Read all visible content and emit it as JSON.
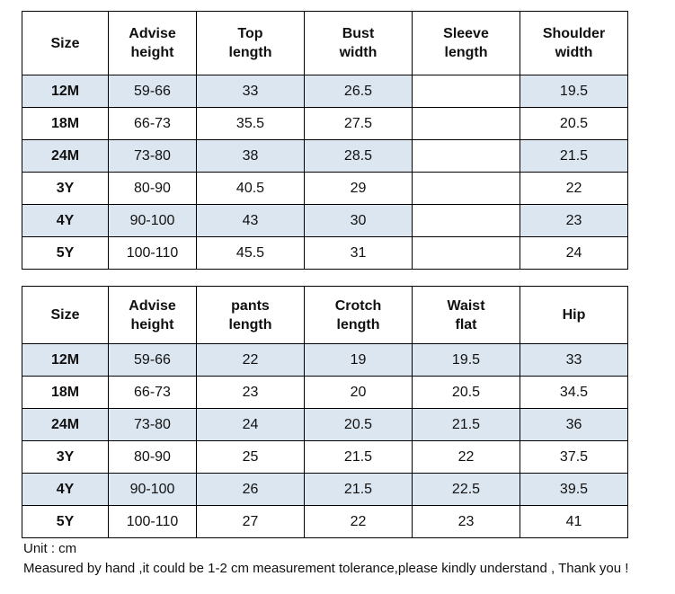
{
  "top_table": {
    "headers": [
      [
        "Size"
      ],
      [
        "Advise",
        "height"
      ],
      [
        "Top",
        "length"
      ],
      [
        "Bust",
        "width"
      ],
      [
        "Sleeve",
        "length"
      ],
      [
        "Shoulder",
        "width"
      ]
    ],
    "rows": [
      [
        "12M",
        "59-66",
        "33",
        "26.5",
        "",
        "19.5"
      ],
      [
        "18M",
        "66-73",
        "35.5",
        "27.5",
        "",
        "20.5"
      ],
      [
        "24M",
        "73-80",
        "38",
        "28.5",
        "",
        "21.5"
      ],
      [
        "3Y",
        "80-90",
        "40.5",
        "29",
        "",
        "22"
      ],
      [
        "4Y",
        "90-100",
        "43",
        "30",
        "",
        "23"
      ],
      [
        "5Y",
        "100-110",
        "45.5",
        "31",
        "",
        "24"
      ]
    ]
  },
  "bottom_table": {
    "headers": [
      [
        "Size"
      ],
      [
        "Advise",
        "height"
      ],
      [
        "pants",
        "length"
      ],
      [
        "Crotch",
        "length"
      ],
      [
        "Waist",
        "flat"
      ],
      [
        "Hip"
      ]
    ],
    "rows": [
      [
        "12M",
        "59-66",
        "22",
        "19",
        "19.5",
        "33"
      ],
      [
        "18M",
        "66-73",
        "23",
        "20",
        "20.5",
        "34.5"
      ],
      [
        "24M",
        "73-80",
        "24",
        "20.5",
        "21.5",
        "36"
      ],
      [
        "3Y",
        "80-90",
        "25",
        "21.5",
        "22",
        "37.5"
      ],
      [
        "4Y",
        "90-100",
        "26",
        "21.5",
        "22.5",
        "39.5"
      ],
      [
        "5Y",
        "100-110",
        "27",
        "22",
        "23",
        "41"
      ]
    ]
  },
  "notes": {
    "unit": "Unit : cm",
    "measure": "Measured by hand ,it could be 1-2 cm measurement tolerance,please kindly understand , Thank you !"
  },
  "colors": {
    "row_shade": "#dce6f1",
    "border": "#000000"
  }
}
